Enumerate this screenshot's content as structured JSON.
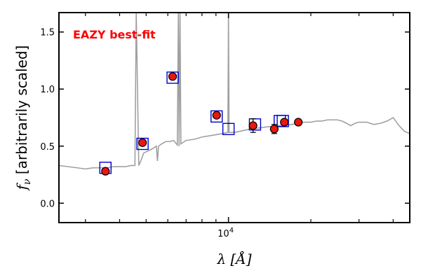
{
  "chart_data": {
    "type": "scatter",
    "title": "",
    "xlabel": "λ [Å]",
    "ylabel": "f_ν [arbitrarily scaled]",
    "xscale": "log",
    "xlim": [
      2400,
      46000
    ],
    "ylim": [
      -0.17,
      1.67
    ],
    "x_ticks": [
      10000
    ],
    "x_tick_labels": [
      "10^4"
    ],
    "x_minor_ticks": [
      3000,
      4000,
      5000,
      6000,
      7000,
      8000,
      9000,
      20000,
      30000,
      40000
    ],
    "y_ticks": [
      0.0,
      0.5,
      1.0,
      1.5
    ],
    "y_tick_labels": [
      "0.0",
      "0.5",
      "1.0",
      "1.5"
    ],
    "grid": false,
    "annotation": {
      "text": "EAZY best-fit",
      "color": "#ff0000"
    },
    "series": [
      {
        "kind": "template_spectrum",
        "color": "#a0a0a0",
        "x": [
          2400,
          2600,
          2800,
          3000,
          3200,
          3400,
          3600,
          3800,
          4000,
          4200,
          4400,
          4550,
          4600,
          4700,
          4800,
          4900,
          5000,
          5100,
          5300,
          5450,
          5500,
          5550,
          5700,
          5900,
          6100,
          6300,
          6500,
          6560,
          6600,
          6650,
          6700,
          6800,
          7000,
          7500,
          8000,
          8500,
          9000,
          9500,
          9950,
          10000,
          10050,
          10500,
          11000,
          12000,
          13000,
          14000,
          15000,
          16000,
          17000,
          18000,
          19000,
          20000,
          21000,
          22000,
          23000,
          24000,
          25000,
          26000,
          27000,
          28000,
          29000,
          30000,
          32000,
          34000,
          36000,
          38000,
          40000,
          42000,
          44000,
          46000
        ],
        "y": [
          0.33,
          0.32,
          0.31,
          0.3,
          0.31,
          0.31,
          0.31,
          0.32,
          0.32,
          0.32,
          0.33,
          0.33,
          1.67,
          0.33,
          0.38,
          0.44,
          0.45,
          0.46,
          0.48,
          0.5,
          0.37,
          0.5,
          0.52,
          0.54,
          0.54,
          0.55,
          0.51,
          1.67,
          0.5,
          1.67,
          0.52,
          0.53,
          0.55,
          0.56,
          0.58,
          0.59,
          0.6,
          0.61,
          0.62,
          1.67,
          0.62,
          0.62,
          0.63,
          0.65,
          0.66,
          0.67,
          0.68,
          0.68,
          0.69,
          0.7,
          0.71,
          0.71,
          0.72,
          0.72,
          0.73,
          0.73,
          0.73,
          0.72,
          0.7,
          0.68,
          0.7,
          0.71,
          0.71,
          0.69,
          0.7,
          0.72,
          0.75,
          0.68,
          0.63,
          0.61
        ]
      },
      {
        "kind": "model_photometry",
        "marker": "open-square",
        "color": "#0000cc",
        "x": [
          3550,
          4850,
          6250,
          9050,
          10000,
          12500,
          15400,
          15800
        ],
        "y": [
          0.31,
          0.52,
          1.1,
          0.76,
          0.65,
          0.69,
          0.72,
          0.72
        ]
      },
      {
        "kind": "observed_photometry",
        "marker": "filled-circle",
        "color": "#e8170f",
        "x": [
          3550,
          4850,
          6250,
          9050,
          12300,
          14700,
          16000,
          18000
        ],
        "y": [
          0.28,
          0.53,
          1.11,
          0.77,
          0.68,
          0.65,
          0.71,
          0.71
        ],
        "yerr": [
          0.01,
          0.01,
          0.01,
          0.01,
          0.06,
          0.04,
          0.01,
          0.01
        ]
      }
    ]
  }
}
